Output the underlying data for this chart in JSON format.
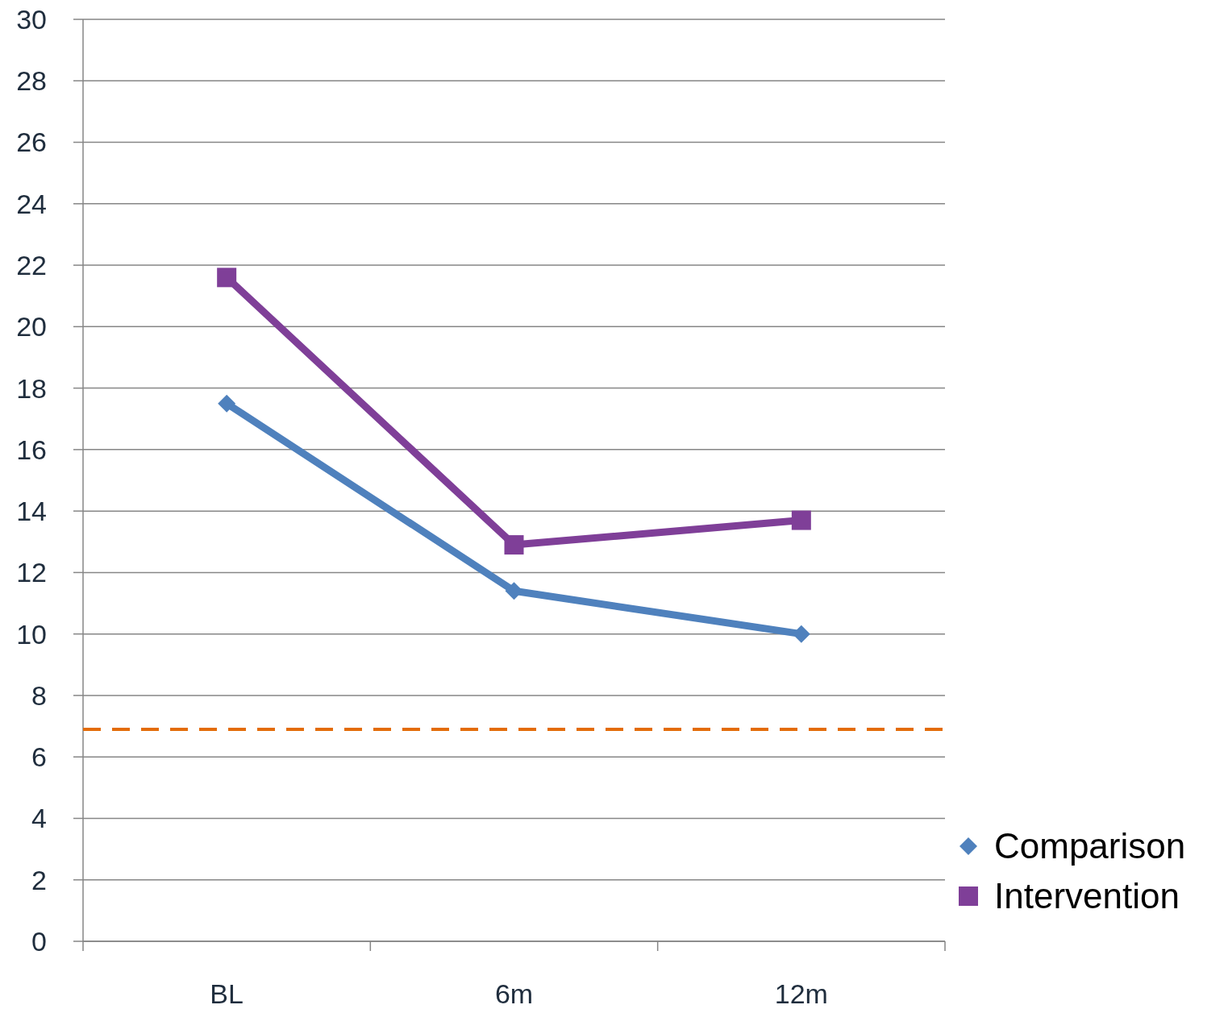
{
  "chart_data": {
    "type": "line",
    "categories": [
      "BL",
      "6m",
      "12m"
    ],
    "series": [
      {
        "name": "Comparison",
        "color": "#4f81bd",
        "marker": "diamond",
        "values": [
          17.5,
          11.4,
          10.0
        ]
      },
      {
        "name": "Intervention",
        "color": "#7f3f98",
        "marker": "square",
        "values": [
          21.6,
          12.9,
          13.7
        ]
      }
    ],
    "ylim": [
      0,
      30
    ],
    "yticks": [
      0,
      2,
      4,
      6,
      8,
      10,
      12,
      14,
      16,
      18,
      20,
      22,
      24,
      26,
      28,
      30
    ],
    "grid": "y",
    "legend": "bottom right",
    "line_style": "solid",
    "ref_lines": [
      {
        "axis": "y",
        "value": 6.9,
        "color": "#e36c09",
        "line_style": "dashed"
      }
    ]
  }
}
